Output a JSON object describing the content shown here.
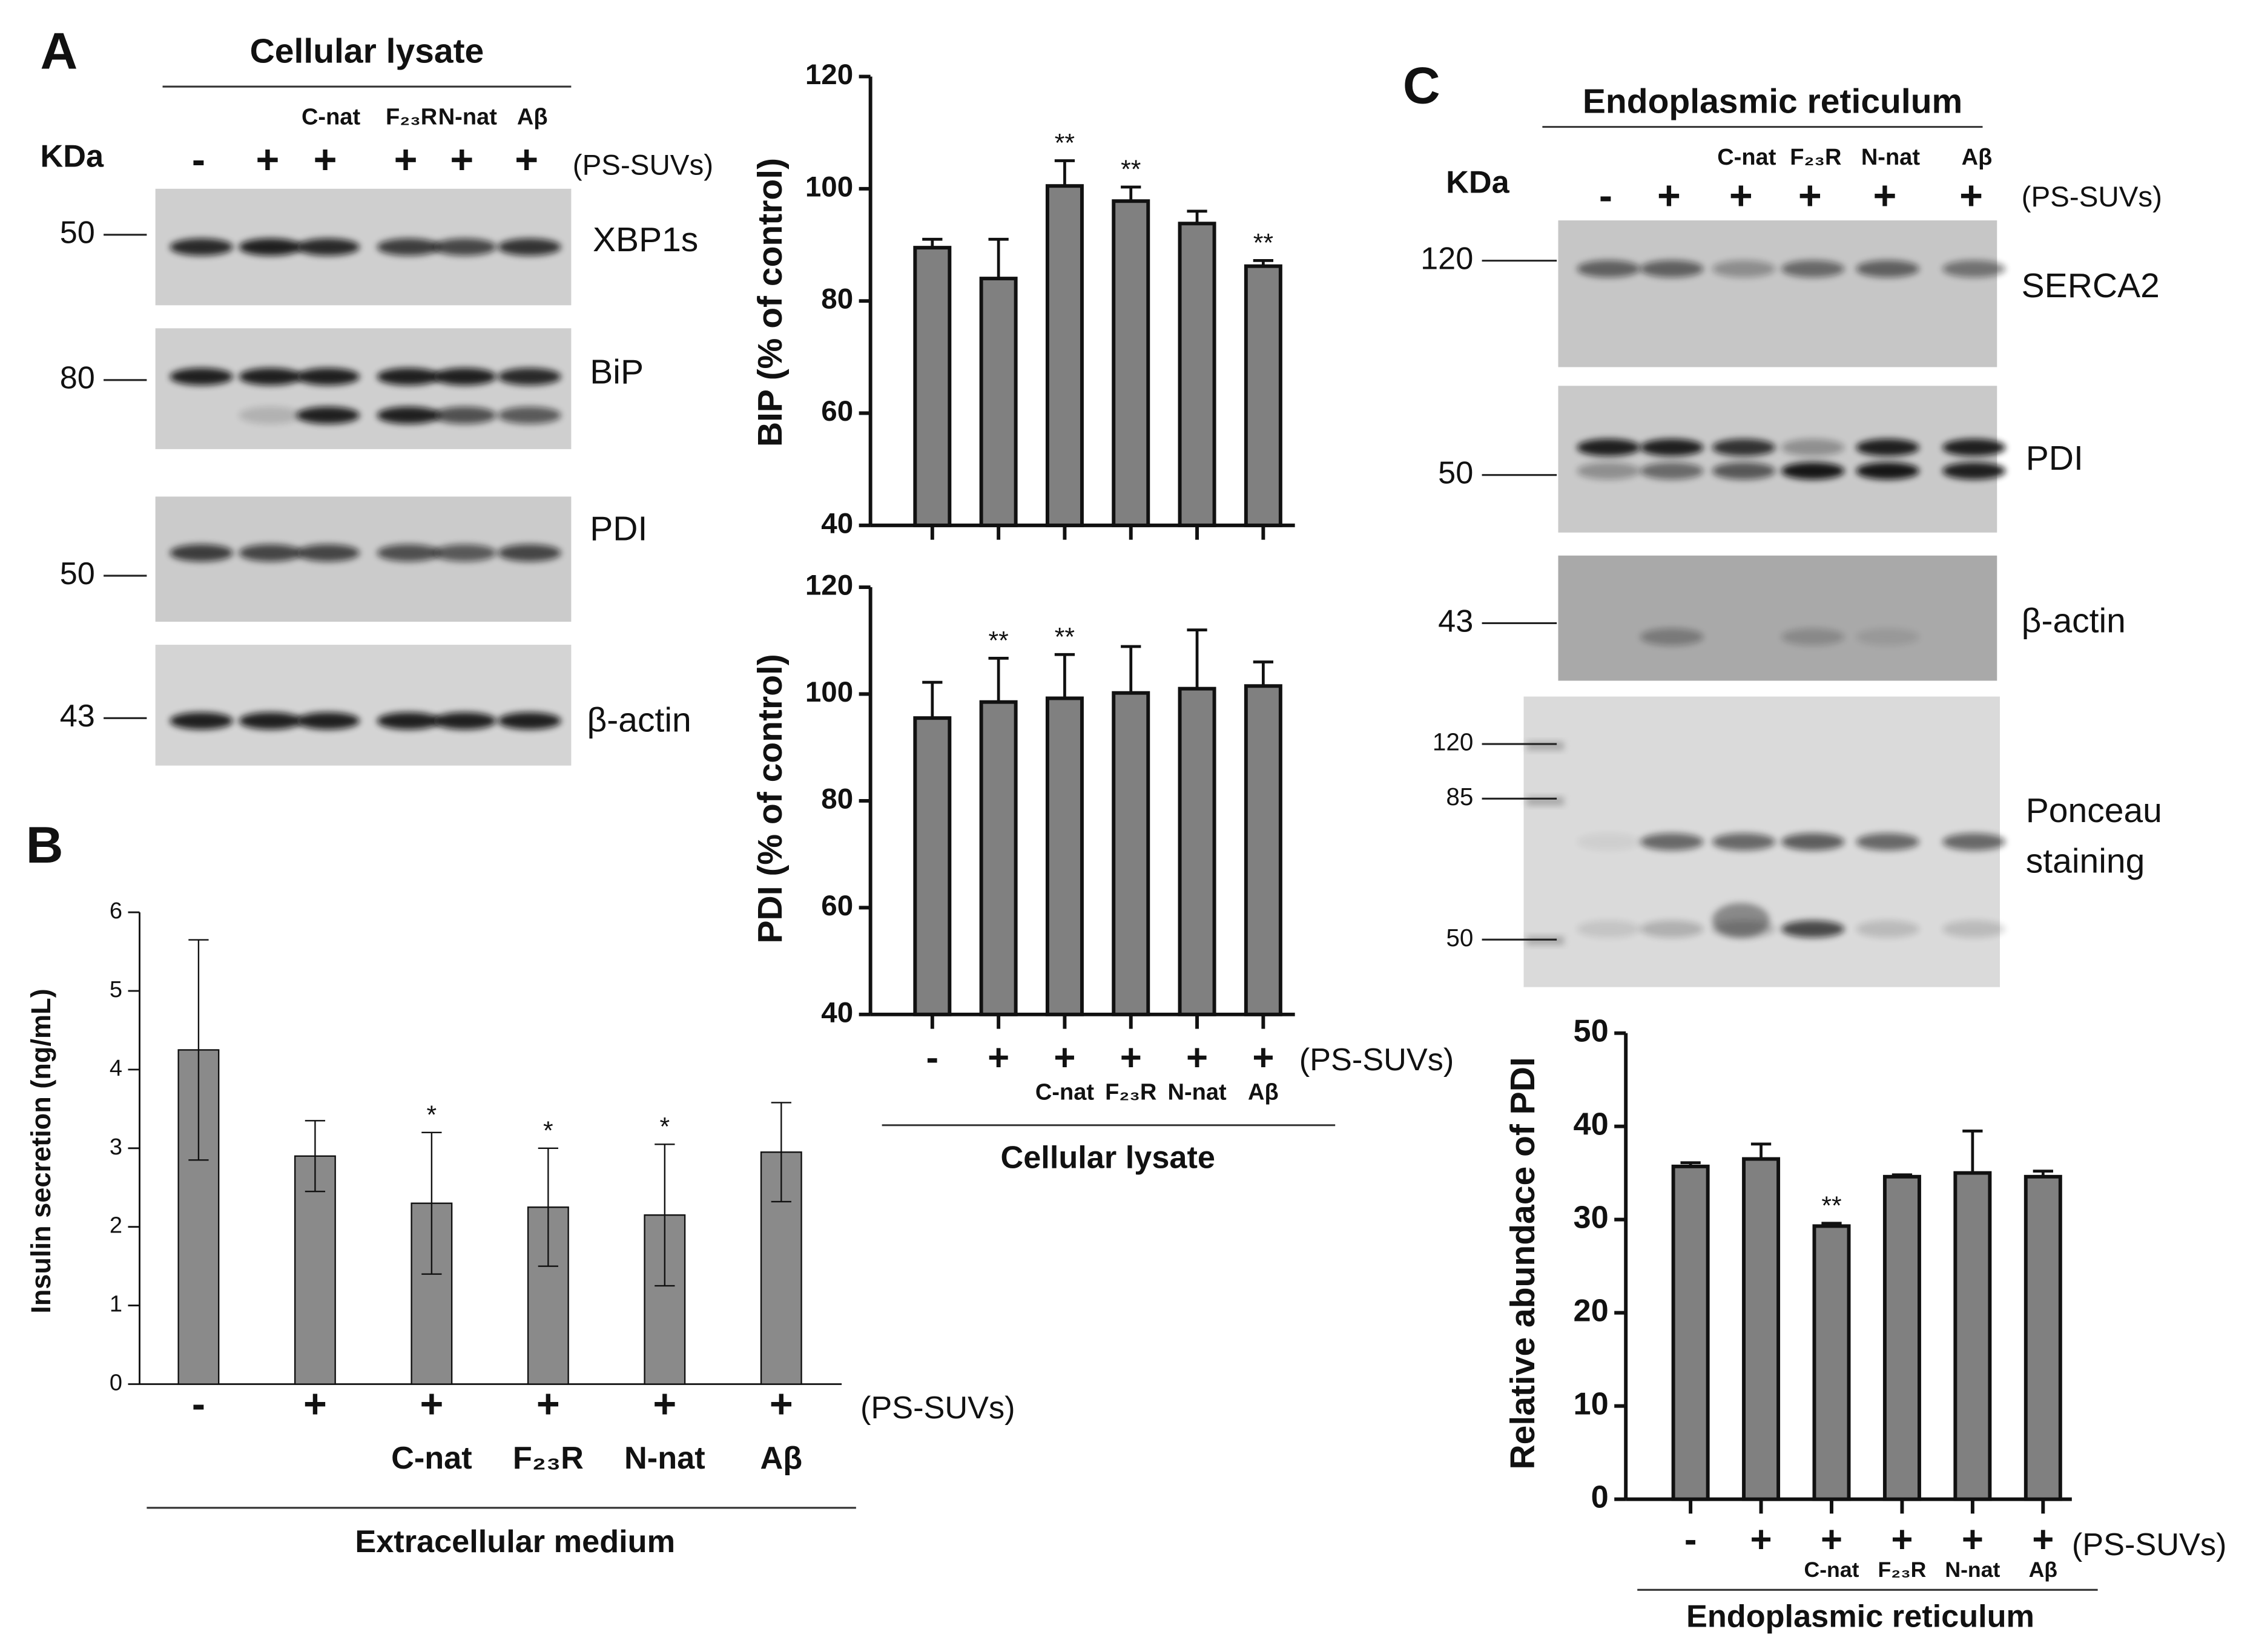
{
  "panel_labels": [
    "A",
    "B",
    "C"
  ],
  "blots": [
    {
      "title": "Cellular  lysate",
      "kda": "KDa",
      "lane_signs": [
        "-",
        "+",
        "+",
        "+",
        "+",
        "+"
      ],
      "treatments": [
        null,
        null,
        "C-nat",
        "F₂₃R",
        "N-nat",
        "Aβ"
      ],
      "ps_label": "(PS-SUVs)",
      "strips": [
        {
          "name": [
            "XBP1s"
          ],
          "markers": [
            "50"
          ]
        },
        {
          "name": [
            "BiP"
          ],
          "markers": [
            "80"
          ]
        },
        {
          "name": [
            "PDI"
          ],
          "markers": [
            "50"
          ]
        },
        {
          "name": [
            "β-actin"
          ],
          "markers": [
            "43"
          ]
        }
      ]
    },
    {
      "title": "Endoplasmic reticulum",
      "kda": "KDa",
      "lane_signs": [
        "-",
        "+",
        "+",
        "+",
        "+",
        "+"
      ],
      "treatments": [
        null,
        null,
        "C-nat",
        "F₂₃R",
        "N-nat",
        "Aβ"
      ],
      "ps_label": "(PS-SUVs)",
      "strips": [
        {
          "name": [
            "SERCA2"
          ],
          "markers": [
            "120"
          ]
        },
        {
          "name": [
            "PDI"
          ],
          "markers": [
            "50"
          ]
        },
        {
          "name": [
            "β-actin"
          ],
          "markers": [
            "43"
          ]
        },
        {
          "name": [
            "Ponceau",
            "staining"
          ],
          "markers": [
            "120",
            "85",
            "50"
          ]
        }
      ]
    }
  ],
  "chart_data": [
    {
      "type": "bar",
      "ylabel": "BIP (% of control)",
      "ylim": [
        40,
        120
      ],
      "yticks": [
        40,
        60,
        80,
        100,
        120
      ],
      "values": [
        89.5,
        84,
        100.5,
        97.8,
        93.8,
        86.2
      ],
      "errors": [
        1.5,
        7,
        4.5,
        2.5,
        2.2,
        1
      ],
      "error_direction": "up",
      "star_labels": [
        null,
        null,
        "**",
        "**",
        null,
        "**"
      ],
      "color": "#808080"
    },
    {
      "type": "bar",
      "ylabel": "PDI (% of control)",
      "ylim": [
        40,
        120
      ],
      "yticks": [
        40,
        60,
        80,
        100,
        120
      ],
      "categories": [
        "-",
        "+",
        "+",
        "+",
        "+",
        "+"
      ],
      "sublabels": [
        null,
        null,
        "C-nat",
        "F₂₃R",
        "N-nat",
        "Aβ"
      ],
      "values": [
        95.5,
        98.5,
        99.2,
        100.2,
        101,
        101.5
      ],
      "errors": [
        6.7,
        8.2,
        8.2,
        8.7,
        11,
        4.5
      ],
      "error_direction": "up",
      "star_labels": [
        null,
        "**",
        "**",
        null,
        null,
        null
      ],
      "series_label": "(PS-SUVs)",
      "group_label": "Cellular lysate",
      "color": "#808080"
    },
    {
      "type": "bar",
      "ylabel": "Insulin secretion (ng/mL)",
      "ylim": [
        0,
        6
      ],
      "yticks": [
        0,
        1,
        2,
        3,
        4,
        5,
        6
      ],
      "categories": [
        "-",
        "+",
        "+",
        "+",
        "+",
        "+"
      ],
      "sublabels": [
        null,
        null,
        "C-nat",
        "F₂₃R",
        "N-nat",
        "Aβ"
      ],
      "values": [
        4.25,
        2.9,
        2.3,
        2.25,
        2.15,
        2.95
      ],
      "errors": [
        1.4,
        0.45,
        0.9,
        0.75,
        0.9,
        0.63
      ],
      "error_direction": "both",
      "star_labels": [
        null,
        null,
        "*",
        "*",
        "*",
        null
      ],
      "series_label": "(PS-SUVs)",
      "group_label": "Extracellular medium",
      "color": "#8a8a8a"
    },
    {
      "type": "bar",
      "ylabel": "Relative abundace of PDI",
      "ylim": [
        0,
        50
      ],
      "yticks": [
        0,
        10,
        20,
        30,
        40,
        50
      ],
      "categories": [
        "-",
        "+",
        "+",
        "+",
        "+",
        "+"
      ],
      "sublabels": [
        null,
        null,
        "C-nat",
        "F₂₃R",
        "N-nat",
        "Aβ"
      ],
      "values": [
        35.7,
        36.5,
        29.3,
        34.6,
        35,
        34.6
      ],
      "errors": [
        0.4,
        1.6,
        0.3,
        0.2,
        4.5,
        0.6
      ],
      "error_direction": "up",
      "star_labels": [
        null,
        null,
        "**",
        null,
        null,
        null
      ],
      "series_label": "(PS-SUVs)",
      "group_label": "Endoplasmic reticulum",
      "color": "#808080"
    }
  ]
}
